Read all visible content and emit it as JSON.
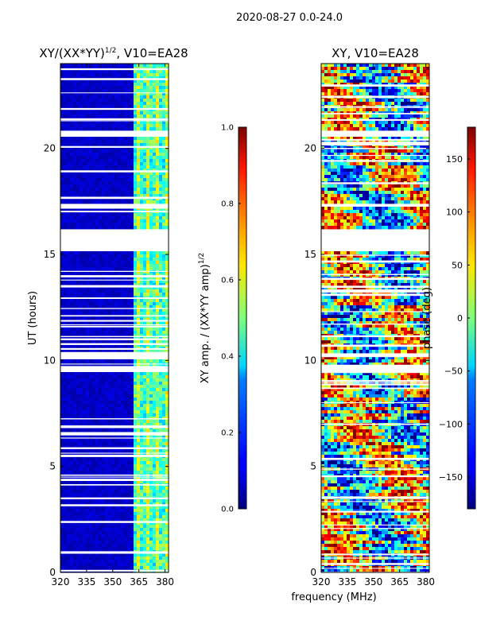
{
  "suptitle": "2020-08-27 0.0-24.0",
  "xlabel": "frequency (MHz)",
  "ylabel": "UT (hours)",
  "chart_data": [
    {
      "type": "heatmap",
      "title": "XY/(XX*YY)",
      "title_sup": "1/2",
      "title_suffix": ", V10=EA28",
      "xlim": [
        320,
        382
      ],
      "ylim": [
        0,
        24
      ],
      "xticks": [
        320,
        335,
        350,
        365,
        380
      ],
      "yticks": [
        0,
        5,
        10,
        15,
        20
      ],
      "gap_hours": [
        [
          15.2,
          16.2
        ],
        [
          9.4,
          9.7
        ],
        [
          10.2,
          10.4
        ],
        [
          20.5,
          20.8
        ],
        [
          17.2,
          17.4
        ]
      ],
      "colorbar": {
        "label": "XY amp. / (XX*YY amp)",
        "label_sup": "1/2",
        "range": [
          0.0,
          1.0
        ],
        "ticks": [
          "0.0",
          "0.2",
          "0.4",
          "0.6",
          "0.8",
          "1.0"
        ]
      }
    },
    {
      "type": "heatmap",
      "title": "XY, V10=EA28",
      "xlim": [
        320,
        382
      ],
      "ylim": [
        0,
        24
      ],
      "xticks": [
        320,
        335,
        350,
        365,
        380
      ],
      "yticks": [
        0,
        5,
        10,
        15,
        20
      ],
      "gap_hours": [
        [
          15.2,
          16.2
        ],
        [
          9.4,
          9.7
        ],
        [
          10.2,
          10.4
        ],
        [
          20.5,
          20.8
        ],
        [
          17.2,
          17.4
        ]
      ],
      "colorbar": {
        "label": "phase (deg)",
        "range": [
          -180,
          180
        ],
        "ticks": [
          "150",
          "100",
          "50",
          "0",
          "−50",
          "−100",
          "−150"
        ]
      }
    }
  ]
}
